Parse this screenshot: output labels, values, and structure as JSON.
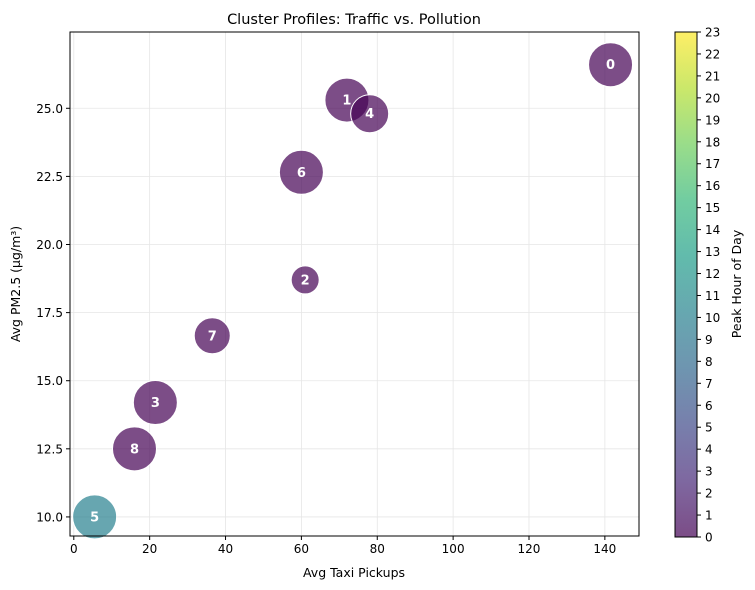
{
  "chart_data": {
    "type": "scatter",
    "title": "Cluster Profiles: Traffic vs. Pollution",
    "xlabel": "Avg Taxi Pickups",
    "ylabel": "Avg PM2.5 (µg/m³)",
    "xlim": [
      -1,
      149
    ],
    "ylim": [
      9.3,
      27.8
    ],
    "xticks": [
      0,
      20,
      40,
      60,
      80,
      100,
      120,
      140
    ],
    "yticks": [
      10.0,
      12.5,
      15.0,
      17.5,
      20.0,
      22.5,
      25.0
    ],
    "ytick_labels": [
      "10.0",
      "12.5",
      "15.0",
      "17.5",
      "20.0",
      "22.5",
      "25.0"
    ],
    "grid": true,
    "colorbar": {
      "label": "Peak Hour of Day",
      "min": 0,
      "max": 23,
      "ticks": [
        0,
        1,
        2,
        3,
        4,
        5,
        6,
        7,
        8,
        9,
        10,
        11,
        12,
        13,
        14,
        15,
        16,
        17,
        18,
        19,
        20,
        21,
        22,
        23
      ],
      "colormap": "viridis"
    },
    "points": [
      {
        "label": "0",
        "x": 141.5,
        "y": 26.6,
        "size": 22,
        "peak_hour": 0
      },
      {
        "label": "1",
        "x": 72.0,
        "y": 25.3,
        "size": 22,
        "peak_hour": 0
      },
      {
        "label": "2",
        "x": 61.0,
        "y": 18.7,
        "size": 14,
        "peak_hour": 0
      },
      {
        "label": "3",
        "x": 21.5,
        "y": 14.2,
        "size": 22,
        "peak_hour": 0
      },
      {
        "label": "4",
        "x": 78.0,
        "y": 24.8,
        "size": 19,
        "peak_hour": 0
      },
      {
        "label": "5",
        "x": 5.5,
        "y": 10.0,
        "size": 22,
        "peak_hour": 10
      },
      {
        "label": "6",
        "x": 60.0,
        "y": 22.65,
        "size": 22,
        "peak_hour": 0
      },
      {
        "label": "7",
        "x": 36.5,
        "y": 16.65,
        "size": 18,
        "peak_hour": 0
      },
      {
        "label": "8",
        "x": 16.0,
        "y": 12.5,
        "size": 22,
        "peak_hour": 0
      }
    ]
  }
}
